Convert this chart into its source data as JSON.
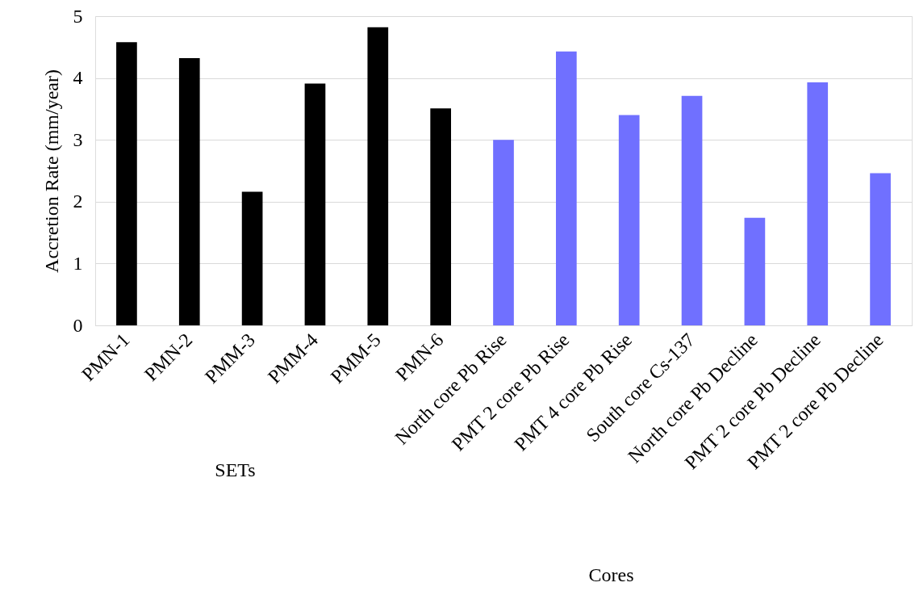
{
  "chart_data": {
    "type": "bar",
    "ylabel": "Accretion Rate (mm/year)",
    "categories": [
      "PMN-1",
      "PMN-2",
      "PMM-3",
      "PMM-4",
      "PMM-5",
      "PMN-6",
      "North core Pb Rise",
      "PMT 2 core Pb Rise",
      "PMT 4 core Pb Rise",
      "South core Cs-137",
      "North core Pb Decline",
      "PMT 2 core Pb Decline",
      "PMT 2 core Pb Decline"
    ],
    "series": [
      {
        "color": "#000000",
        "values": [
          4.58,
          4.32,
          2.16,
          3.91,
          4.82,
          3.51,
          null,
          null,
          null,
          null,
          null,
          null,
          null
        ]
      },
      {
        "color": "#7070ff",
        "values": [
          null,
          null,
          null,
          null,
          null,
          null,
          3.0,
          4.43,
          3.4,
          3.71,
          1.74,
          3.93,
          2.46
        ]
      }
    ],
    "annotations": [
      "SETs",
      "Cores"
    ],
    "ylim": [
      0,
      5
    ],
    "yticks": [
      0,
      1,
      2,
      3,
      4,
      5
    ],
    "grid": "y",
    "legend": false
  }
}
